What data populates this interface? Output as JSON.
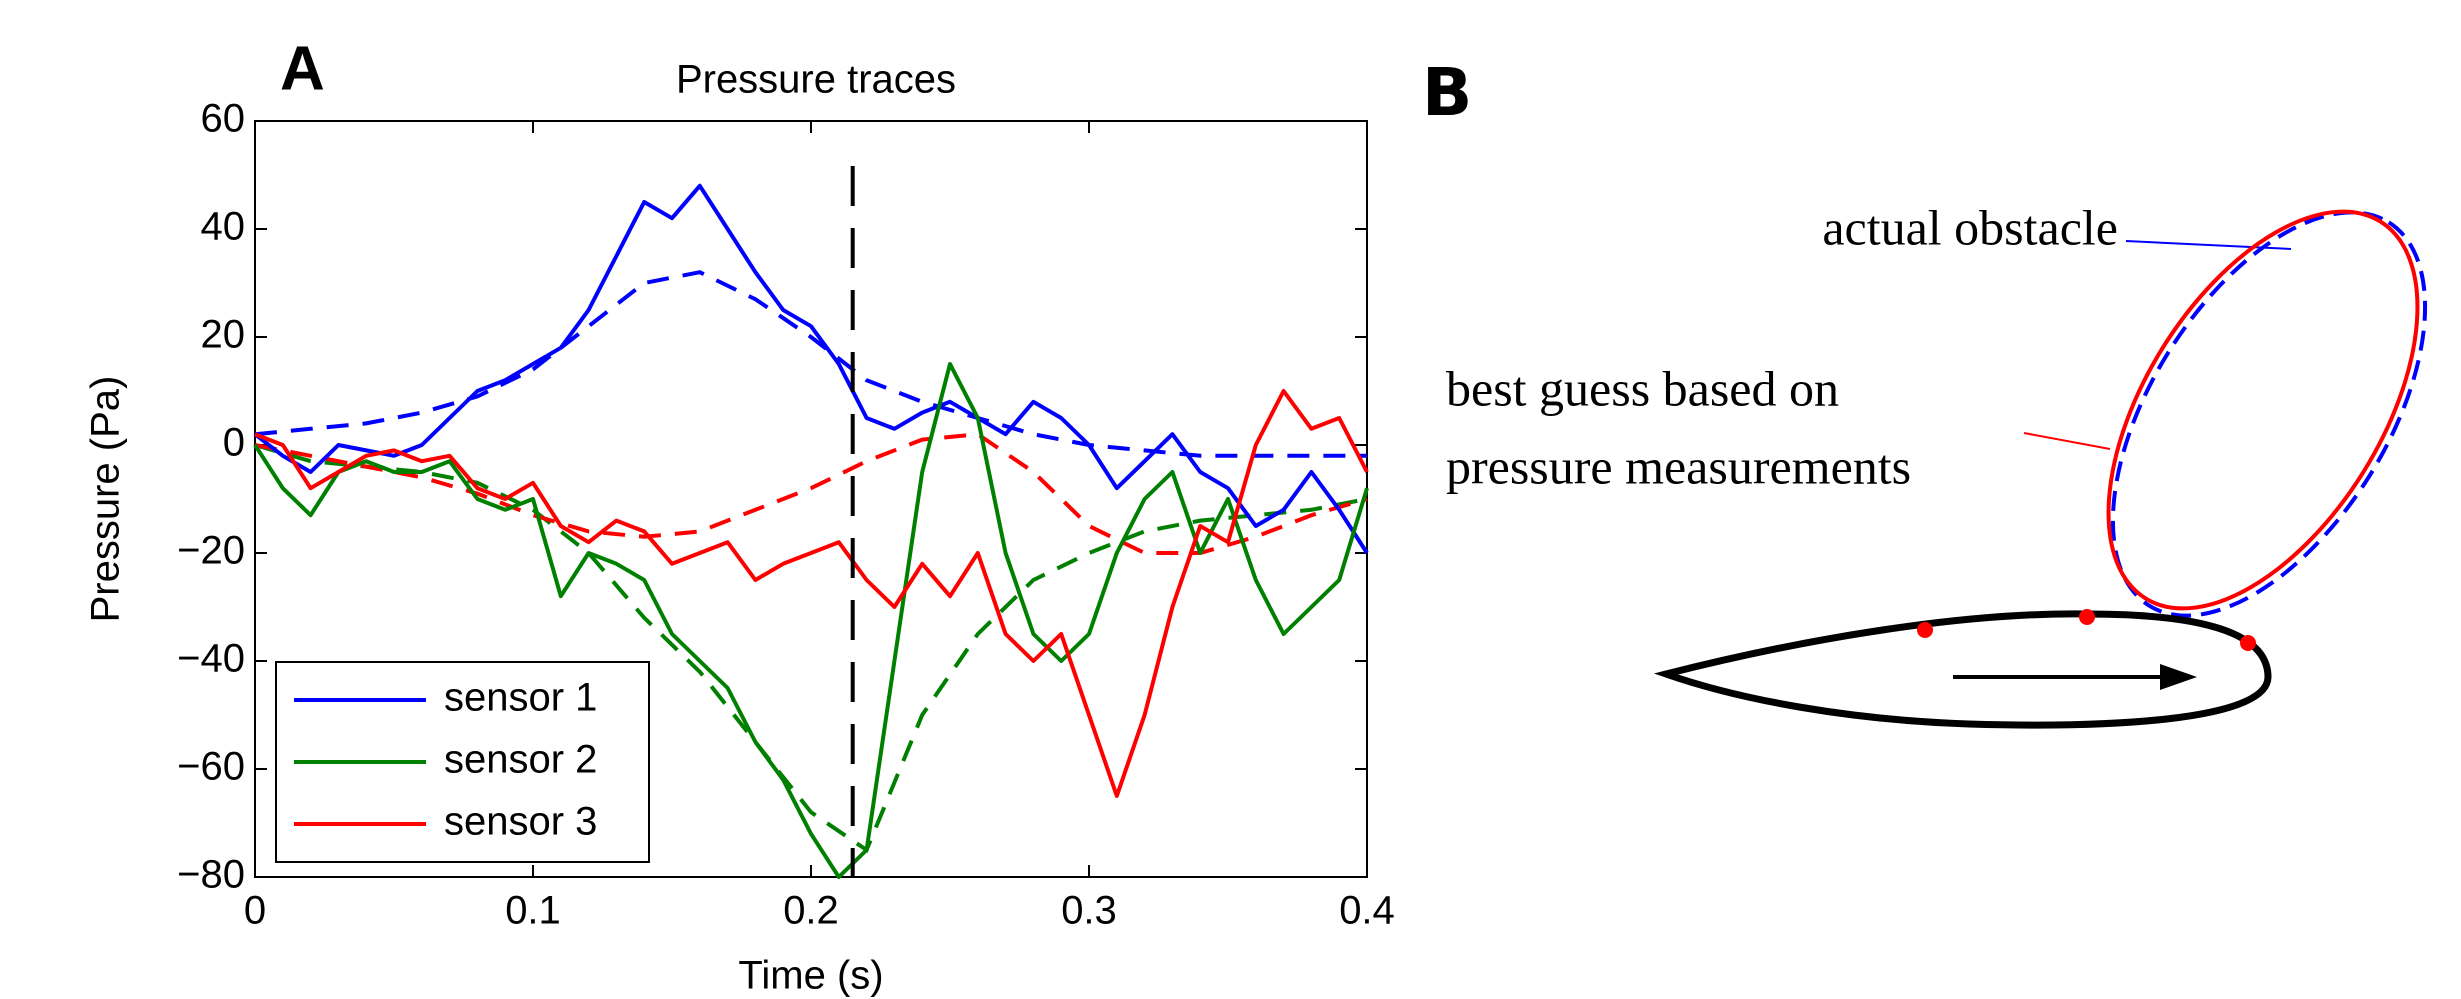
{
  "panel_a_label": "A",
  "chart_data": {
    "type": "line",
    "title": "Pressure traces",
    "x_label": "Time (s)",
    "y_label": "Pressure (Pa)",
    "x": [
      0,
      0.01,
      0.02,
      0.03,
      0.04,
      0.05,
      0.06,
      0.07,
      0.08,
      0.09,
      0.1,
      0.11,
      0.12,
      0.13,
      0.14,
      0.15,
      0.16,
      0.17,
      0.18,
      0.19,
      0.2,
      0.21,
      0.22,
      0.23,
      0.24,
      0.25,
      0.26,
      0.27,
      0.28,
      0.29,
      0.3,
      0.31,
      0.32,
      0.33,
      0.34,
      0.35,
      0.36,
      0.37,
      0.38,
      0.39,
      0.4
    ],
    "fit_x": [
      0,
      0.02,
      0.04,
      0.06,
      0.08,
      0.1,
      0.12,
      0.14,
      0.16,
      0.18,
      0.2,
      0.22,
      0.24,
      0.26,
      0.28,
      0.3,
      0.32,
      0.34,
      0.36,
      0.38,
      0.4
    ],
    "series": [
      {
        "name": "sensor 1",
        "color": "#0000ff",
        "values": [
          2,
          -2,
          -5,
          0,
          -1,
          -2,
          0,
          5,
          10,
          12,
          15,
          18,
          25,
          35,
          45,
          42,
          48,
          40,
          32,
          25,
          22,
          15,
          5,
          3,
          6,
          8,
          5,
          2,
          8,
          5,
          0,
          -8,
          -3,
          2,
          -5,
          -8,
          -15,
          -12,
          -5,
          -12,
          -20
        ],
        "fit_values": [
          2,
          3,
          4,
          6,
          9,
          14,
          22,
          30,
          32,
          27,
          20,
          12,
          8,
          5,
          2,
          0,
          -1,
          -2,
          -2,
          -2,
          -2
        ]
      },
      {
        "name": "sensor 2",
        "color": "#008000",
        "values": [
          0,
          -8,
          -13,
          -5,
          -3,
          -5,
          -5,
          -3,
          -10,
          -12,
          -10,
          -28,
          -20,
          -22,
          -25,
          -35,
          -40,
          -45,
          -55,
          -62,
          -72,
          -80,
          -75,
          -40,
          -5,
          15,
          5,
          -20,
          -35,
          -40,
          -35,
          -20,
          -10,
          -5,
          -20,
          -10,
          -25,
          -35,
          -30,
          -25,
          -8
        ],
        "fit_values": [
          0,
          -3,
          -4,
          -5,
          -7,
          -12,
          -20,
          -32,
          -42,
          -55,
          -68,
          -75,
          -50,
          -35,
          -25,
          -20,
          -16,
          -14,
          -13,
          -12,
          -10
        ]
      },
      {
        "name": "sensor 3",
        "color": "#ff0000",
        "values": [
          2,
          0,
          -8,
          -5,
          -2,
          -1,
          -3,
          -2,
          -8,
          -10,
          -7,
          -15,
          -18,
          -14,
          -16,
          -22,
          -20,
          -18,
          -25,
          -22,
          -20,
          -18,
          -25,
          -30,
          -22,
          -28,
          -20,
          -35,
          -40,
          -35,
          -50,
          -65,
          -50,
          -30,
          -15,
          -18,
          0,
          10,
          3,
          5,
          -5
        ],
        "fit_values": [
          0,
          -2,
          -4,
          -6,
          -9,
          -13,
          -16,
          -17,
          -16,
          -12,
          -8,
          -3,
          1,
          2,
          -5,
          -15,
          -20,
          -20,
          -17,
          -13,
          -10
        ]
      }
    ],
    "vline": 0.215,
    "xlim": [
      0,
      0.4
    ],
    "xticks": [
      0,
      0.1,
      0.2,
      0.3,
      0.4
    ],
    "ylim": [
      -80,
      60
    ],
    "yticks": [
      {
        "value": -80,
        "label": "−80"
      },
      {
        "value": -60,
        "label": "−60"
      },
      {
        "value": -40,
        "label": "−40"
      },
      {
        "value": -20,
        "label": "−20"
      },
      0,
      20,
      40,
      60
    ],
    "legend": "lower left"
  },
  "panel_b": {
    "label": "B",
    "actual": "actual obstacle",
    "guess_line1": "best guess based on",
    "guess_line2": "pressure measurements"
  }
}
